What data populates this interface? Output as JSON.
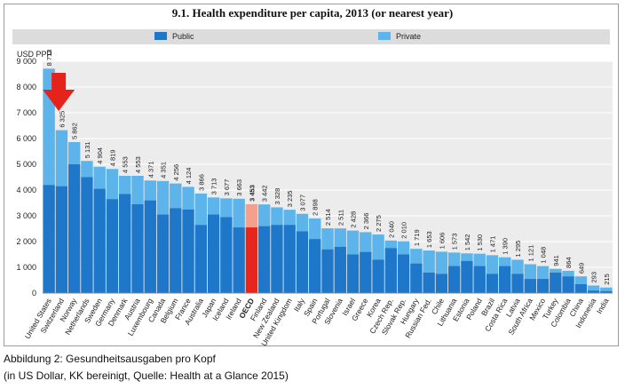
{
  "chart_data": {
    "type": "bar",
    "stacked": true,
    "title": "9.1.  Health expenditure per capita, 2013 (or nearest year)",
    "ylabel": "USD PPP",
    "ylim": [
      0,
      9000
    ],
    "yticks": [
      0,
      1000,
      2000,
      3000,
      4000,
      5000,
      6000,
      7000,
      8000,
      9000
    ],
    "ytick_labels": [
      "0",
      "1 000",
      "2 000",
      "3 000",
      "4 000",
      "5 000",
      "6 000",
      "7 000",
      "8 000",
      "9 000"
    ],
    "legend": [
      "Public",
      "Private"
    ],
    "highlight_category": "OECD",
    "categories": [
      "United States",
      "Switzerland",
      "Norway",
      "Netherlands",
      "Sweden",
      "Germany",
      "Denmark",
      "Austria",
      "Luxembourg",
      "Canada",
      "Belgium",
      "France",
      "Australia",
      "Japan",
      "Iceland",
      "Ireland",
      "OECD",
      "Finland",
      "New Zealand",
      "United Kingdom",
      "Italy",
      "Spain",
      "Portugal",
      "Slovenia",
      "Israel",
      "Greece",
      "Korea",
      "Czech Rep.",
      "Slovak Rep.",
      "Hungary",
      "Russian Fed.",
      "Chile",
      "Lithuania",
      "Estonia",
      "Poland",
      "Brazil",
      "Costa Rica",
      "Latvia",
      "South Africa",
      "Mexico",
      "Turkey",
      "Colombia",
      "China",
      "Indonesia",
      "India"
    ],
    "totals": [
      8713,
      6325,
      5862,
      5131,
      4904,
      4819,
      4553,
      4553,
      4371,
      4351,
      4256,
      4124,
      3866,
      3713,
      3677,
      3663,
      3453,
      3442,
      3328,
      3235,
      3077,
      2898,
      2514,
      2511,
      2428,
      2366,
      2275,
      2040,
      2010,
      1719,
      1653,
      1606,
      1573,
      1542,
      1530,
      1471,
      1390,
      1295,
      1121,
      1048,
      941,
      864,
      649,
      293,
      215
    ],
    "total_labels": [
      "8 713",
      "6 325",
      "5 862",
      "5 131",
      "4 904",
      "4 819",
      "4 553",
      "4 553",
      "4 371",
      "4 351",
      "4 256",
      "4 124",
      "3 866",
      "3 713",
      "3 677",
      "3 663",
      "3 453",
      "3 442",
      "3 328",
      "3 235",
      "3 077",
      "2 898",
      "2 514",
      "2 511",
      "2 428",
      "2 366",
      "2 275",
      "2 040",
      "2 010",
      "1 719",
      "1 653",
      "1 606",
      "1 573",
      "1 542",
      "1 530",
      "1 471",
      "1 390",
      "1 295",
      "1 121",
      "1 048",
      "941",
      "864",
      "649",
      "293",
      "215"
    ],
    "public": [
      4200,
      4150,
      5000,
      4500,
      4050,
      3650,
      3850,
      3450,
      3600,
      3050,
      3300,
      3250,
      2650,
      3050,
      2950,
      2550,
      2550,
      2600,
      2650,
      2650,
      2400,
      2100,
      1700,
      1800,
      1500,
      1600,
      1300,
      1750,
      1500,
      1150,
      800,
      750,
      1050,
      1250,
      1050,
      750,
      1050,
      750,
      550,
      550,
      800,
      650,
      350,
      100,
      80
    ]
  },
  "caption": {
    "line1": "Abbildung 2: Gesundheitsausgaben pro Kopf",
    "line2": "(in US Dollar, KK bereinigt, Quelle: Health at a Glance 2015)"
  },
  "colors": {
    "public": "#1f77c9",
    "private": "#5db4ea",
    "oecd_public": "#e8251c",
    "oecd_private": "#f4a08c",
    "legend_bg": "#dcdcdc",
    "arrow": "#e6231b",
    "plot_bg": "#ececec"
  },
  "annotation": {
    "arrow_target": "United States"
  }
}
